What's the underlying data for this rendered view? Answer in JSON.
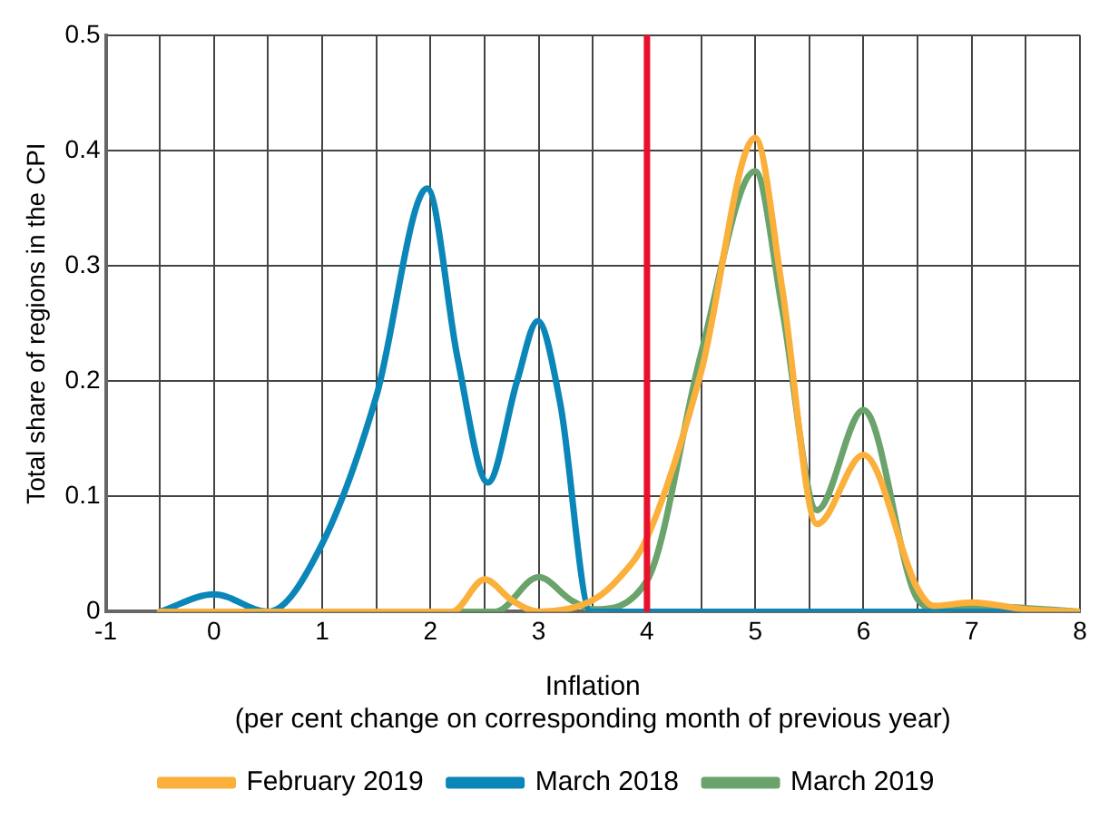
{
  "chart_data": {
    "type": "line",
    "xlabel": "Inflation\n(per cent change on corresponding month of previous year)",
    "ylabel": "Total share of regions in the CPI",
    "xlim": [
      -1,
      8
    ],
    "xticks": [
      -1,
      {
        "value": -0.5,
        "label": null
      },
      0,
      {
        "value": 0.5,
        "label": null
      },
      1,
      {
        "value": 1.5,
        "label": null
      },
      2,
      {
        "value": 2.5,
        "label": null
      },
      3,
      {
        "value": 3.5,
        "label": null
      },
      4,
      {
        "value": 4.5,
        "label": null
      },
      5,
      {
        "value": 5.5,
        "label": null
      },
      6,
      {
        "value": 6.5,
        "label": null
      },
      7,
      {
        "value": 7.5,
        "label": null
      },
      8
    ],
    "ylim": [
      0,
      0.5
    ],
    "yticks": [
      0,
      0.1,
      0.2,
      0.3,
      0.4,
      0.5
    ],
    "grid": true,
    "legend": "bottom",
    "marker": "none",
    "line_style": "solid",
    "series": [
      {
        "name": "February 2019",
        "color": "#fbb03b",
        "x": [
          -0.5,
          2.2,
          2.5,
          2.75,
          3,
          3.5,
          3.75,
          4,
          4.5,
          5,
          5.25,
          5.57,
          6,
          6.5,
          6.65,
          7,
          7.5,
          8
        ],
        "values": [
          0,
          0,
          0.028,
          0.01,
          0,
          0.01,
          0.03,
          0.064,
          0.208,
          0.411,
          0.28,
          0.076,
          0.136,
          0.02,
          0.005,
          0.008,
          0.002,
          0
        ]
      },
      {
        "name": "March 2018",
        "color": "#0b86b8",
        "x": [
          -0.5,
          0,
          0.5,
          1,
          1.5,
          1.97,
          2.25,
          2.53,
          2.8,
          2.99,
          3.2,
          3.48,
          4,
          8
        ],
        "values": [
          0,
          0.015,
          0,
          0.059,
          0.187,
          0.367,
          0.22,
          0.112,
          0.2,
          0.252,
          0.18,
          0,
          0,
          0
        ]
      },
      {
        "name": "March 2019",
        "color": "#6aa36b",
        "x": [
          -0.5,
          2.6,
          3,
          3.3,
          3.5,
          4,
          4.5,
          5,
          5.25,
          5.57,
          6,
          6.5,
          6.7,
          7,
          8
        ],
        "values": [
          0,
          0,
          0.03,
          0.01,
          0.002,
          0.027,
          0.224,
          0.382,
          0.262,
          0.088,
          0.175,
          0.011,
          0.002,
          0.005,
          0
        ]
      }
    ],
    "ref_lines": [
      {
        "axis": "x",
        "value": 4,
        "color": "#e8112d"
      }
    ]
  }
}
